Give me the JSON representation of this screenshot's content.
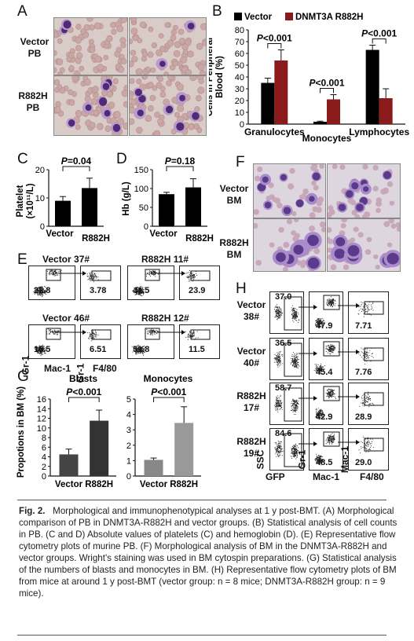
{
  "panels": {
    "A": {
      "letter": "A",
      "row_labels": [
        "Vector\nPB",
        "R882H\nPB"
      ]
    },
    "B": {
      "letter": "B",
      "ylabel": "Cells in Peripheral\nBlood (%)",
      "legend": [
        "Vector",
        "DNMT3A R882H"
      ],
      "sig": [
        "P<0.001",
        "P<0.001",
        "P<0.001"
      ]
    },
    "C": {
      "letter": "C",
      "ylabel": "Platelet\n(×10¹¹/L)",
      "sig": "P=0.04"
    },
    "D": {
      "letter": "D",
      "ylabel": "Hb (g/L)",
      "sig": "P=0.18"
    },
    "E": {
      "letter": "E",
      "samples": [
        {
          "title": "Vector 37#",
          "v1": "22.8",
          "v2": "3.78"
        },
        {
          "title": "R882H 11#",
          "v1": "41.5",
          "v2": "23.9"
        },
        {
          "title": "Vector 46#",
          "v1": "15.5",
          "v2": "6.51"
        },
        {
          "title": "R882H 12#",
          "v1": "51.8",
          "v2": "11.5"
        }
      ],
      "axes": {
        "y1": "Gr-1",
        "x1": "Mac-1",
        "y2": "Gr-1",
        "x2": "F4/80"
      }
    },
    "F": {
      "letter": "F",
      "row_labels": [
        "Vector\nBM",
        "R882H\nBM"
      ]
    },
    "G": {
      "letter": "G",
      "ylabel": "Propotions in BM (%)",
      "titles": [
        "Blasts",
        "Monocytes"
      ],
      "sig": [
        "P<0.001",
        "P<0.001"
      ]
    },
    "H": {
      "letter": "H",
      "rows": [
        {
          "label": "Vector\n38#",
          "v1": "37.0",
          "v2": "47.9",
          "v3": "7.71"
        },
        {
          "label": "Vector\n40#",
          "v1": "36.5",
          "v2": "45.4",
          "v3": "7.76"
        },
        {
          "label": "R882H\n17#",
          "v1": "58.7",
          "v2": "42.9",
          "v3": "28.9"
        },
        {
          "label": "R882H\n19#",
          "v1": "84.6",
          "v2": "48.5",
          "v3": "29.0"
        }
      ],
      "axes": {
        "ssc": "SSC",
        "gfp": "GFP",
        "gr1": "Gr-1",
        "mac1a": "Mac-1",
        "mac1b": "Mac-1",
        "f480": "F4/80"
      }
    }
  },
  "chart_data": [
    {
      "type": "bar",
      "panel": "B",
      "categories": [
        "Granulocytes",
        "Monocytes",
        "Lymphocytes"
      ],
      "series": [
        {
          "name": "Vector",
          "values": [
            35,
            2,
            63
          ],
          "errors": [
            4,
            0.5,
            4
          ],
          "color": "#000000"
        },
        {
          "name": "DNMT3A R882H",
          "values": [
            54,
            21,
            22
          ],
          "errors": [
            9,
            4,
            8
          ],
          "color": "#8b1a1a"
        }
      ],
      "ylabel": "Cells in Peripheral Blood (%)",
      "ylim": [
        0,
        80
      ],
      "yticks": [
        0,
        10,
        20,
        30,
        40,
        50,
        60,
        70,
        80
      ]
    },
    {
      "type": "bar",
      "panel": "C",
      "categories": [
        "Vector",
        "R882H"
      ],
      "values": [
        9,
        13.5
      ],
      "errors": [
        1.5,
        3.5
      ],
      "ylabel": "Platelet (×10¹¹/L)",
      "ylim": [
        0,
        20
      ],
      "yticks": [
        0,
        10,
        20
      ]
    },
    {
      "type": "bar",
      "panel": "D",
      "categories": [
        "Vector",
        "R882H"
      ],
      "values": [
        85,
        103
      ],
      "errors": [
        5,
        23
      ],
      "ylabel": "Hb (g/L)",
      "ylim": [
        0,
        150
      ],
      "yticks": [
        0,
        50,
        100,
        150
      ]
    },
    {
      "type": "bar",
      "panel": "G-Blasts",
      "title": "Blasts",
      "categories": [
        "Vector",
        "R882H"
      ],
      "values": [
        4.5,
        11.5
      ],
      "errors": [
        1.1,
        2.2
      ],
      "ylim": [
        0,
        16
      ],
      "yticks": [
        0,
        2,
        4,
        6,
        8,
        10,
        12,
        14,
        16
      ],
      "colors": [
        "#444444",
        "#333333"
      ]
    },
    {
      "type": "bar",
      "panel": "G-Monocytes",
      "title": "Monocytes",
      "categories": [
        "Vector",
        "R882H"
      ],
      "values": [
        1.05,
        3.45
      ],
      "errors": [
        0.12,
        1.05
      ],
      "ylim": [
        0,
        5
      ],
      "yticks": [
        0,
        1,
        2,
        3,
        4,
        5
      ],
      "colors": [
        "#888888",
        "#999999"
      ]
    }
  ],
  "caption": {
    "fig": "Fig. 2.",
    "text": "Morphological and immunophenotypical analyses at 1 y post-BMT. (A) Morphological comparison of PB in DNMT3A-R882H and vector groups. (B) Statistical analysis of cell counts in PB. (C and D) Absolute values of platelets (C) and hemoglobin (D). (E) Representative flow cytometry plots of murine PB. (F) Morphological analysis of BM in the DNMT3A-R882H and vector groups. Wright's staining was used in BM cytospin preparations. (G) Statistical analysis of the numbers of blasts and monocytes in BM. (H) Representative flow cytometry plots of BM from mice at around 1 y post-BMT (vector group: n = 8 mice; DNMT3A-R882H group: n = 9 mice)."
  }
}
